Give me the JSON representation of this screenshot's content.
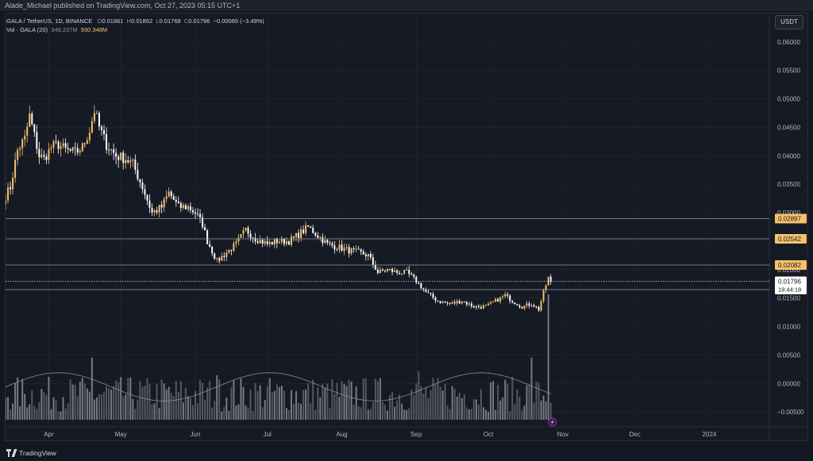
{
  "header": {
    "published": "Alade_Michael published on TradingView.com, Oct 27, 2023 05:15 UTC+1"
  },
  "legend": {
    "symbol": "GALA / TetherUS, 1D, BINANCE",
    "o_label": "O",
    "o": "0.01861",
    "h_label": "H",
    "h": "0.01862",
    "l_label": "L",
    "l": "0.01768",
    "c_label": "C",
    "c": "0.01796",
    "change": "−0.00065 (−3.49%)",
    "vol_label": "Vol · GALA (20)",
    "vol_ma": "348.237M",
    "vol_value": "930.348M"
  },
  "currency_button": "USDT",
  "footer": {
    "brand": "TradingView"
  },
  "colors": {
    "up": "#f5c26b",
    "down": "#ffffff",
    "vol": "#8a8d96",
    "hline": "#9598a1",
    "bg": "#161a25",
    "grid": "#1f2330"
  },
  "chart_data": {
    "type": "candlestick",
    "y_axis_ticks": [
      "0.06000",
      "0.05500",
      "0.05000",
      "0.04500",
      "0.04000",
      "0.03500",
      "0.03000",
      "0.02500",
      "0.02000",
      "0.01500",
      "0.01000",
      "0.00500",
      "0.00000",
      "−0.00500"
    ],
    "y_axis_values": [
      0.06,
      0.055,
      0.05,
      0.045,
      0.04,
      0.035,
      0.03,
      0.025,
      0.02,
      0.015,
      0.01,
      0.005,
      0,
      -0.005
    ],
    "ylim": [
      -0.0072,
      0.065
    ],
    "x_axis_ticks": [
      "Apr",
      "May",
      "Jun",
      "Jul",
      "Aug",
      "Sep",
      "Oct",
      "Nov",
      "Dec",
      "2024"
    ],
    "x_axis_dates": [
      "2023-04-01",
      "2023-05-01",
      "2023-06-01",
      "2023-07-01",
      "2023-08-01",
      "2023-09-01",
      "2023-10-01",
      "2023-11-01",
      "2023-12-01",
      "2024-01-01"
    ],
    "xlim": [
      "2023-03-14",
      "2024-01-26"
    ],
    "horizontal_levels": [
      {
        "value": 0.02897,
        "label": "0.02897",
        "style": "solid"
      },
      {
        "value": 0.02542,
        "label": "0.02542",
        "style": "solid"
      },
      {
        "value": 0.02082,
        "label": "0.02082",
        "style": "solid"
      },
      {
        "value": 0.01649,
        "label": "0.01649",
        "style": "solid"
      }
    ],
    "last_price": {
      "value": 0.01796,
      "label": "0.01796",
      "countdown": "19:44:18"
    },
    "close_path": [
      [
        "2023-03-14",
        0.033
      ],
      [
        "2023-03-16",
        0.0345
      ],
      [
        "2023-03-19",
        0.041
      ],
      [
        "2023-03-22",
        0.043
      ],
      [
        "2023-03-24",
        0.047
      ],
      [
        "2023-03-26",
        0.0435
      ],
      [
        "2023-03-28",
        0.04
      ],
      [
        "2023-03-30",
        0.0395
      ],
      [
        "2023-04-02",
        0.0415
      ],
      [
        "2023-04-05",
        0.042
      ],
      [
        "2023-04-08",
        0.041
      ],
      [
        "2023-04-12",
        0.0405
      ],
      [
        "2023-04-15",
        0.0415
      ],
      [
        "2023-04-18",
        0.0445
      ],
      [
        "2023-04-20",
        0.048
      ],
      [
        "2023-04-22",
        0.045
      ],
      [
        "2023-04-25",
        0.042
      ],
      [
        "2023-04-29",
        0.04
      ],
      [
        "2023-05-03",
        0.0395
      ],
      [
        "2023-05-06",
        0.0385
      ],
      [
        "2023-05-10",
        0.0345
      ],
      [
        "2023-05-14",
        0.03
      ],
      [
        "2023-05-18",
        0.031
      ],
      [
        "2023-05-21",
        0.0335
      ],
      [
        "2023-05-25",
        0.031
      ],
      [
        "2023-05-29",
        0.031
      ],
      [
        "2023-06-01",
        0.03
      ],
      [
        "2023-06-04",
        0.028
      ],
      [
        "2023-06-06",
        0.025
      ],
      [
        "2023-06-10",
        0.0215
      ],
      [
        "2023-06-14",
        0.023
      ],
      [
        "2023-06-18",
        0.0245
      ],
      [
        "2023-06-22",
        0.027
      ],
      [
        "2023-06-26",
        0.0255
      ],
      [
        "2023-07-01",
        0.0245
      ],
      [
        "2023-07-05",
        0.025
      ],
      [
        "2023-07-10",
        0.025
      ],
      [
        "2023-07-15",
        0.0265
      ],
      [
        "2023-07-18",
        0.0275
      ],
      [
        "2023-07-22",
        0.026
      ],
      [
        "2023-07-26",
        0.0245
      ],
      [
        "2023-07-30",
        0.024
      ],
      [
        "2023-08-03",
        0.0235
      ],
      [
        "2023-08-08",
        0.023
      ],
      [
        "2023-08-12",
        0.0225
      ],
      [
        "2023-08-16",
        0.0195
      ],
      [
        "2023-08-20",
        0.02
      ],
      [
        "2023-08-24",
        0.0195
      ],
      [
        "2023-08-28",
        0.0195
      ],
      [
        "2023-09-01",
        0.018
      ],
      [
        "2023-09-05",
        0.016
      ],
      [
        "2023-09-10",
        0.0145
      ],
      [
        "2023-09-15",
        0.014
      ],
      [
        "2023-09-20",
        0.0145
      ],
      [
        "2023-09-25",
        0.0135
      ],
      [
        "2023-09-30",
        0.0135
      ],
      [
        "2023-10-04",
        0.0145
      ],
      [
        "2023-10-08",
        0.0155
      ],
      [
        "2023-10-11",
        0.0145
      ],
      [
        "2023-10-15",
        0.0135
      ],
      [
        "2023-10-19",
        0.014
      ],
      [
        "2023-10-22",
        0.013
      ],
      [
        "2023-10-24",
        0.016
      ],
      [
        "2023-10-26",
        0.0186
      ],
      [
        "2023-10-27",
        0.01796
      ]
    ],
    "volume_scale_max": 1000000000,
    "volume_highlights": [
      [
        "2023-04-19",
        460000000
      ],
      [
        "2023-06-10",
        330000000
      ],
      [
        "2023-09-02",
        360000000
      ],
      [
        "2023-10-19",
        460000000
      ],
      [
        "2023-10-26",
        930348000
      ]
    ],
    "volume_ma_value": 348237000
  }
}
